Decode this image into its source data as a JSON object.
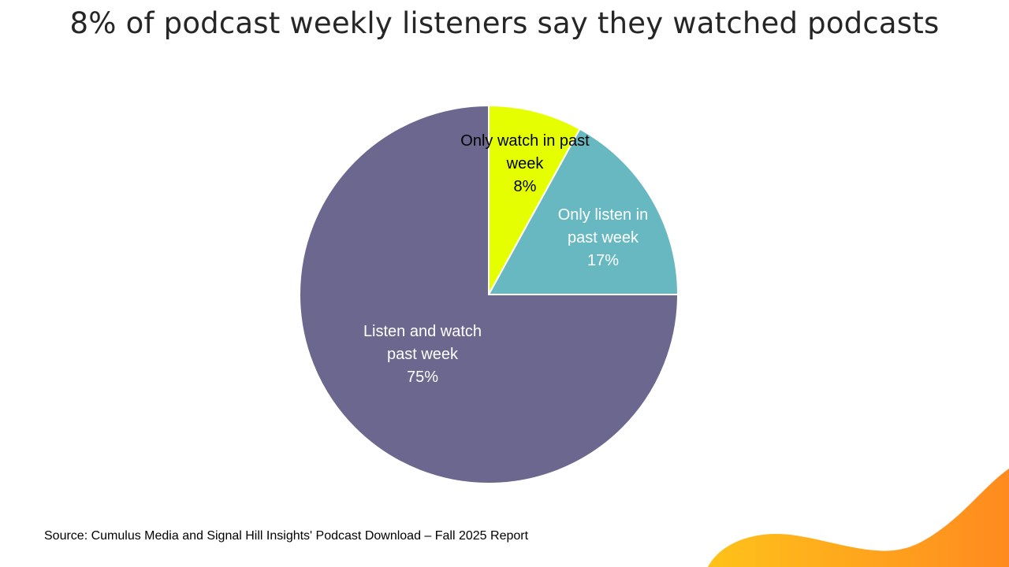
{
  "slide": {
    "title": "8% of podcast weekly listeners say they watched podcasts",
    "source": "Source: Cumulus Media and Signal Hill Insights' Podcast Download – Fall 2025 Report"
  },
  "chart_data": {
    "type": "pie",
    "title": "8% of podcast weekly listeners say they watched podcasts",
    "slices": [
      {
        "name": "Only watch in past week",
        "label_lines": [
          "Only watch in past",
          "week"
        ],
        "value": 8,
        "value_label": "8%",
        "color": "#e6ff00",
        "text_color": "#000000"
      },
      {
        "name": "Only listen in past week",
        "label_lines": [
          "Only listen in",
          "past week"
        ],
        "value": 17,
        "value_label": "17%",
        "color": "#67b8c1",
        "text_color": "#ffffff"
      },
      {
        "name": "Listen and watch past week",
        "label_lines": [
          "Listen and watch",
          "past week"
        ],
        "value": 75,
        "value_label": "75%",
        "color": "#6b678e",
        "text_color": "#ffffff"
      }
    ]
  },
  "decor": {
    "wave_color_start": "#ffc21a",
    "wave_color_end": "#ff8a1f"
  }
}
